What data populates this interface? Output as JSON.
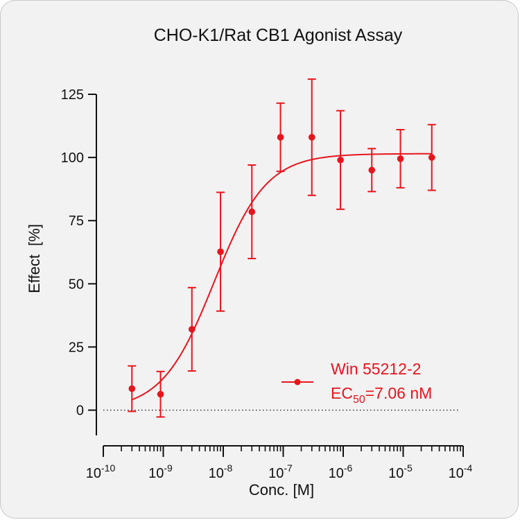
{
  "chart_data": {
    "type": "scatter",
    "title": "CHO-K1/Rat CB1 Agonist Assay",
    "xlabel": "Conc. [M]",
    "ylabel": "Effect  [%]",
    "x_scale": "log",
    "xlim": [
      1e-10,
      0.0001
    ],
    "ylim": [
      -10,
      125
    ],
    "y_ticks": [
      0,
      25,
      50,
      75,
      100,
      125
    ],
    "x_ticks": [
      {
        "base": "10",
        "exp": "-10",
        "value": 1e-10
      },
      {
        "base": "10",
        "exp": "-9",
        "value": 1e-09
      },
      {
        "base": "10",
        "exp": "-8",
        "value": 1e-08
      },
      {
        "base": "10",
        "exp": "-7",
        "value": 1e-07
      },
      {
        "base": "10",
        "exp": "-6",
        "value": 1e-06
      },
      {
        "base": "10",
        "exp": "-5",
        "value": 1e-05
      },
      {
        "base": "10",
        "exp": "-4",
        "value": 0.0001
      }
    ],
    "grid": false,
    "zero_line": "dotted",
    "legend_position": "bottom-right",
    "series": [
      {
        "name": "Win 55212-2",
        "color": "#e8141c",
        "points": [
          {
            "x": 3e-10,
            "y": 8.5,
            "err": 9
          },
          {
            "x": 9e-10,
            "y": 6.3,
            "err": 9
          },
          {
            "x": 3e-09,
            "y": 32,
            "err": 16.5
          },
          {
            "x": 9e-09,
            "y": 62.7,
            "err": 23.5
          },
          {
            "x": 3e-08,
            "y": 78.5,
            "err": 18.5
          },
          {
            "x": 9e-08,
            "y": 108,
            "err": 13.5
          },
          {
            "x": 3e-07,
            "y": 108,
            "err": 23
          },
          {
            "x": 9e-07,
            "y": 99,
            "err": 19.5
          },
          {
            "x": 3e-06,
            "y": 95,
            "err": 8.5
          },
          {
            "x": 9e-06,
            "y": 99.5,
            "err": 11.5
          },
          {
            "x": 3e-05,
            "y": 100,
            "err": 13
          }
        ],
        "fit": {
          "model": "four-parameter logistic",
          "bottom": 0,
          "top": 101.5,
          "ec50": 7.06e-09,
          "hill": 1.0
        }
      }
    ],
    "annotation": {
      "prefix": "EC",
      "subscript": "50",
      "suffix": "=7.06 nM"
    }
  }
}
